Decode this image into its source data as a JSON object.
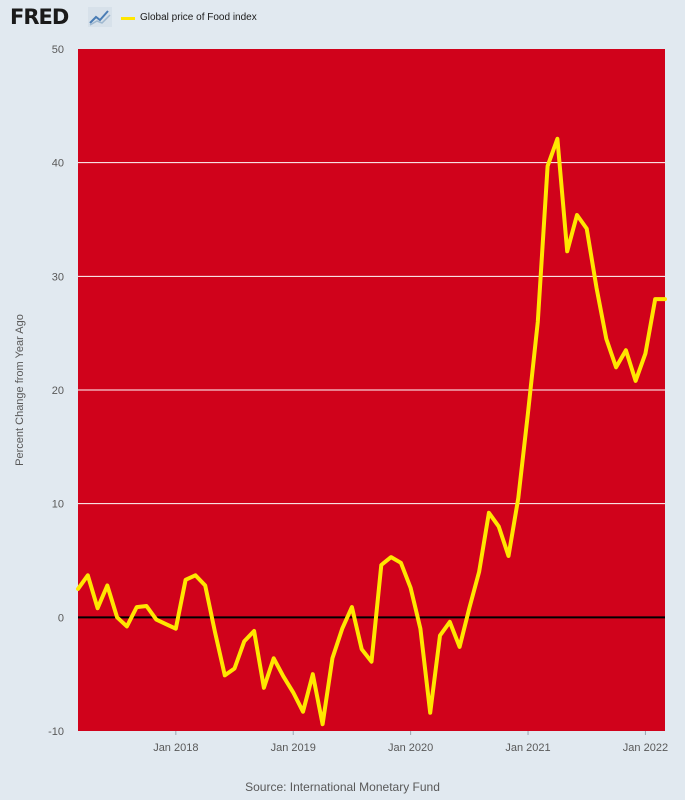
{
  "header": {
    "logo_text": "FRED",
    "logo_icon": "trend-line-icon"
  },
  "colors": {
    "plot_background": "#d0021b",
    "series_line": "#ffe600",
    "zero_line": "#000000",
    "grid": "#ffffff",
    "page_background": "#e1e9f0"
  },
  "chart_data": {
    "type": "line",
    "title": "",
    "xlabel": "",
    "ylabel": "Percent Change from Year Ago",
    "ylim": [
      -10,
      50
    ],
    "yticks": [
      -10,
      0,
      10,
      20,
      30,
      40,
      50
    ],
    "xticks": [
      "Jan 2018",
      "Jan 2019",
      "Jan 2020",
      "Jan 2021",
      "Jan 2022"
    ],
    "x_range": [
      "2017-03",
      "2022-03"
    ],
    "grid": true,
    "legend": "top-left",
    "series": [
      {
        "name": "Global price of Food index",
        "x": [
          "2017-03",
          "2017-04",
          "2017-05",
          "2017-06",
          "2017-07",
          "2017-08",
          "2017-09",
          "2017-10",
          "2017-11",
          "2017-12",
          "2018-01",
          "2018-02",
          "2018-03",
          "2018-04",
          "2018-05",
          "2018-06",
          "2018-07",
          "2018-08",
          "2018-09",
          "2018-10",
          "2018-11",
          "2018-12",
          "2019-01",
          "2019-02",
          "2019-03",
          "2019-04",
          "2019-05",
          "2019-06",
          "2019-07",
          "2019-08",
          "2019-09",
          "2019-10",
          "2019-11",
          "2019-12",
          "2020-01",
          "2020-02",
          "2020-03",
          "2020-04",
          "2020-05",
          "2020-06",
          "2020-07",
          "2020-08",
          "2020-09",
          "2020-10",
          "2020-11",
          "2020-12",
          "2021-01",
          "2021-02",
          "2021-03",
          "2021-04",
          "2021-05",
          "2021-06",
          "2021-07",
          "2021-08",
          "2021-09",
          "2021-10",
          "2021-11",
          "2021-12",
          "2022-01",
          "2022-02",
          "2022-03"
        ],
        "values": [
          2.5,
          3.7,
          0.8,
          2.8,
          0.0,
          -0.8,
          0.9,
          1.0,
          -0.2,
          -0.6,
          -1.0,
          3.3,
          3.7,
          2.8,
          -1.3,
          -5.1,
          -4.5,
          -2.1,
          -1.2,
          -6.2,
          -3.6,
          -5.2,
          -6.6,
          -8.3,
          -5.0,
          -9.4,
          -3.6,
          -1.0,
          0.9,
          -2.8,
          -3.9,
          4.6,
          5.3,
          4.8,
          2.6,
          -1.0,
          -8.4,
          -1.6,
          -0.4,
          -2.6,
          0.8,
          4.0,
          9.2,
          8.0,
          5.4,
          10.5,
          18.0,
          26.0,
          39.7,
          42.1,
          32.2,
          35.4,
          34.2,
          29.0,
          24.5,
          22.0,
          23.5,
          20.8,
          23.2,
          28.0,
          28.0
        ]
      }
    ]
  },
  "footer": {
    "source": "Source: International Monetary Fund"
  }
}
